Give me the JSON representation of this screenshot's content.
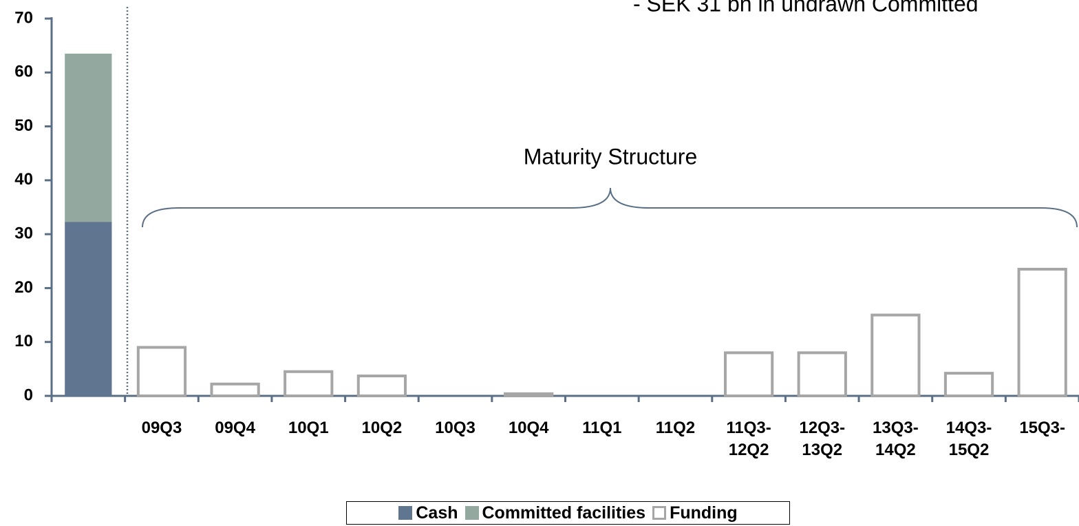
{
  "chart_data": {
    "type": "bar",
    "annotations": [
      "- SEK 31 bn in undrawn Committed",
      "Maturity Structure"
    ],
    "categories": [
      null,
      "09Q3",
      "09Q4",
      "10Q1",
      "10Q2",
      "10Q3",
      "10Q4",
      "11Q1",
      "11Q2",
      "11Q3- 12Q2",
      "12Q3- 13Q2",
      "13Q3- 14Q2",
      "14Q3- 15Q2",
      "15Q3-"
    ],
    "series": [
      {
        "name": "Cash",
        "color": "#5f7590",
        "style": "filled",
        "values": [
          32.3,
          null,
          null,
          null,
          null,
          null,
          null,
          null,
          null,
          null,
          null,
          null,
          null,
          null
        ]
      },
      {
        "name": "Committed facilities",
        "color": "#93a89e",
        "style": "filled",
        "values": [
          31.2,
          null,
          null,
          null,
          null,
          null,
          null,
          null,
          null,
          null,
          null,
          null,
          null,
          null
        ]
      },
      {
        "name": "Funding",
        "color": "#a6a6a6",
        "style": "hollow",
        "values": [
          null,
          9,
          2.2,
          4.5,
          3.7,
          0,
          0.4,
          0,
          0,
          8,
          8,
          15,
          4.2,
          23.5
        ]
      }
    ],
    "stacked": true,
    "ylim": [
      0,
      70
    ],
    "yticks": [
      0,
      10,
      20,
      30,
      40,
      50,
      60,
      70
    ],
    "legend": "bottom"
  }
}
